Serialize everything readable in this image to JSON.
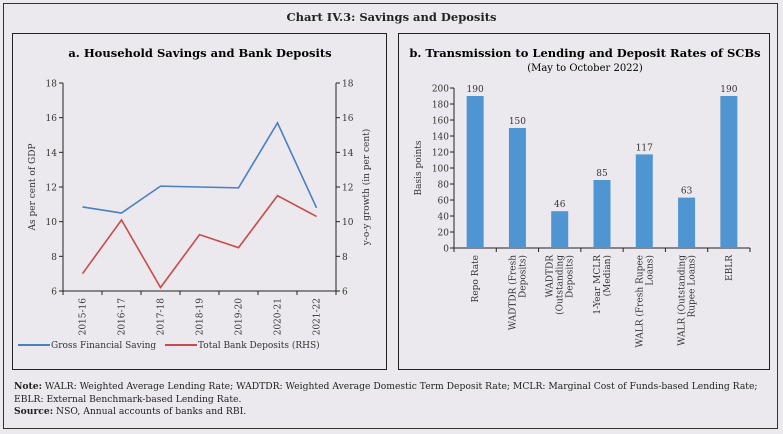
{
  "title": "Chart IV.3: Savings and Deposits",
  "chart_data": [
    {
      "type": "line",
      "title": "a. Household Savings and Bank Deposits",
      "x": [
        "2015-16",
        "2016-17",
        "2017-18",
        "2018-19",
        "2019-20",
        "2020-21",
        "2021-22"
      ],
      "series": [
        {
          "name": "Gross Financial Saving",
          "axis": "left",
          "color": "#4a7fc1",
          "values": [
            10.85,
            10.5,
            12.05,
            12.0,
            11.95,
            15.7,
            10.8
          ]
        },
        {
          "name": "Total Bank Deposits (RHS)",
          "axis": "right",
          "color": "#c94a4a",
          "values": [
            7.0,
            10.1,
            6.2,
            9.25,
            8.5,
            11.5,
            10.3
          ]
        }
      ],
      "ylabel": "As per cent of GDP",
      "ylabel_right": "y-o-y growth (in per cent)",
      "ylim": [
        6,
        18
      ],
      "ylim_right": [
        6,
        18
      ],
      "yticks": [
        6,
        8,
        10,
        12,
        14,
        16,
        18
      ],
      "legend": "bottom",
      "grid": false
    },
    {
      "type": "bar",
      "title": "b. Transmission to Lending and Deposit Rates of SCBs",
      "subtitle": "(May to October 2022)",
      "categories": [
        [
          "Repo Rate"
        ],
        [
          "WADTDR (Fresh",
          "Deposits)"
        ],
        [
          "WADTDR",
          "(Outstanding",
          "Deposits)"
        ],
        [
          "1-Year MCLR",
          "(Median)"
        ],
        [
          "WALR (Fresh Rupee",
          "Loans)"
        ],
        [
          "WALR (Outstanding",
          "Rupee Loans)"
        ],
        [
          "EBLR"
        ]
      ],
      "values": [
        190,
        150,
        46,
        85,
        117,
        63,
        190
      ],
      "data_labels": [
        "190",
        "150",
        "46",
        "85",
        "117",
        "63",
        "190"
      ],
      "color": "#4f95d2",
      "ylabel": "Basis points",
      "ylim": [
        0,
        200
      ],
      "yticks": [
        0,
        20,
        40,
        60,
        80,
        100,
        120,
        140,
        160,
        180,
        200
      ],
      "grid": false
    }
  ],
  "footer": {
    "note_label": "Note:",
    "note_text": " WALR: Weighted Average Lending Rate; WADTDR: Weighted Average Domestic Term Deposit Rate;  MCLR: Marginal Cost of Funds-based Lending Rate; EBLR: External Benchmark-based Lending Rate.",
    "source_label": "Source:",
    "source_text": " NSO, Annual accounts of banks and RBI."
  }
}
